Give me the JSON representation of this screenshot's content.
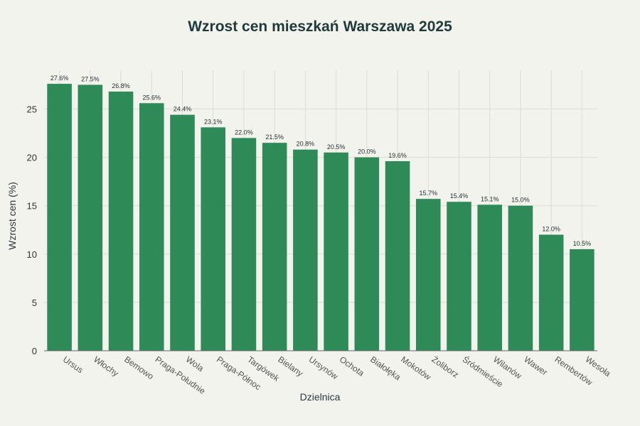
{
  "chart_data": {
    "type": "bar",
    "title": "Wzrost cen mieszkań Warszawa 2025",
    "xlabel": "Dzielnica",
    "ylabel": "Wzrost cen (%)",
    "categories": [
      "Ursus",
      "Włochy",
      "Bemowo",
      "Praga-Południe",
      "Wola",
      "Praga-Północ",
      "Targówek",
      "Bielany",
      "Ursynów",
      "Ochota",
      "Białołęka",
      "Mokotów",
      "Żoliborz",
      "Śródmieście",
      "Wilanów",
      "Wawer",
      "Rembertów",
      "Wesoła"
    ],
    "values": [
      27.6,
      27.5,
      26.8,
      25.6,
      24.4,
      23.1,
      22.0,
      21.5,
      20.8,
      20.5,
      20.0,
      19.6,
      15.7,
      15.4,
      15.1,
      15.0,
      12.0,
      10.5
    ],
    "data_labels": [
      "27.6%",
      "27.5%",
      "26.8%",
      "25.6%",
      "24.4%",
      "23.1%",
      "22.0%",
      "21.5%",
      "20.8%",
      "20.5%",
      "20.0%",
      "19.6%",
      "15.7%",
      "15.4%",
      "15.1%",
      "15.0%",
      "12.0%",
      "10.5%"
    ],
    "yticks": [
      0,
      5,
      10,
      15,
      20,
      25
    ],
    "ylim": [
      0,
      29
    ],
    "bar_color": "#2e8b57",
    "grid": true
  }
}
